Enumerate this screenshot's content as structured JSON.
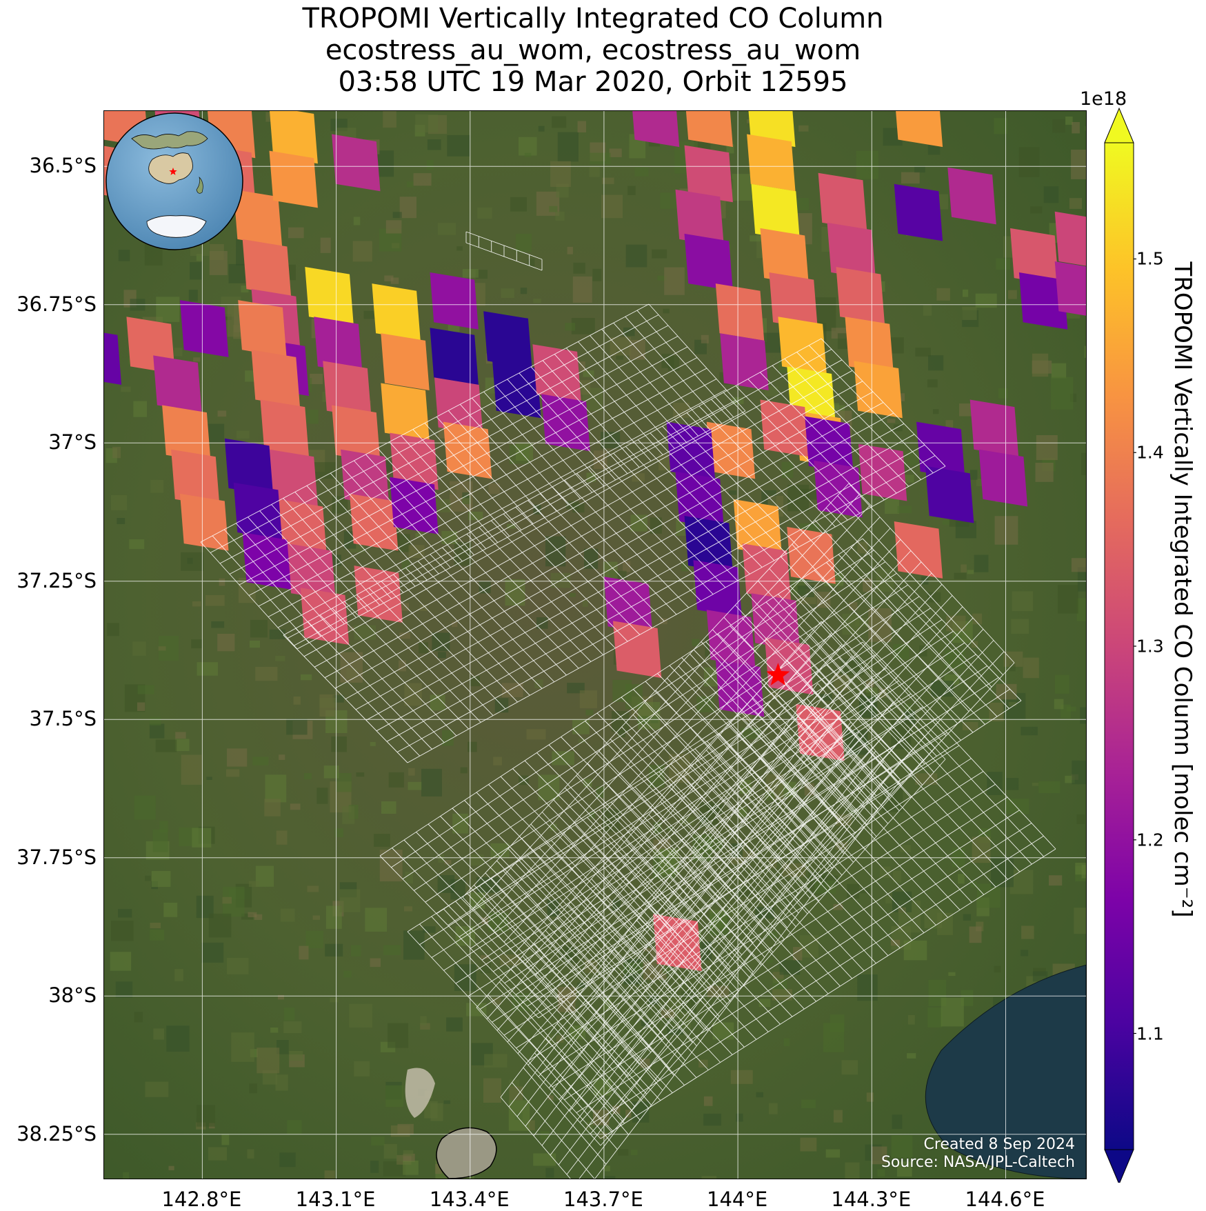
{
  "title": {
    "line1": "TROPOMI Vertically Integrated CO Column",
    "line2": "ecostress_au_wom, ecostress_au_wom",
    "line3": "03:58 UTC 19 Mar 2020, Orbit 12595"
  },
  "map": {
    "extent": {
      "lon_min": 142.58,
      "lon_max": 144.78,
      "lat_min": -38.33,
      "lat_max": -36.4
    },
    "lat_ticks": [
      {
        "value": -36.5,
        "label": "36.5°S"
      },
      {
        "value": -36.75,
        "label": "36.75°S"
      },
      {
        "value": -37.0,
        "label": "37°S"
      },
      {
        "value": -37.25,
        "label": "37.25°S"
      },
      {
        "value": -37.5,
        "label": "37.5°S"
      },
      {
        "value": -37.75,
        "label": "37.75°S"
      },
      {
        "value": -38.0,
        "label": "38°S"
      },
      {
        "value": -38.25,
        "label": "38.25°S"
      }
    ],
    "lon_ticks": [
      {
        "value": 142.8,
        "label": "142.8°E"
      },
      {
        "value": 143.1,
        "label": "143.1°E"
      },
      {
        "value": 143.4,
        "label": "143.4°E"
      },
      {
        "value": 143.7,
        "label": "143.7°E"
      },
      {
        "value": 144.0,
        "label": "144°E"
      },
      {
        "value": 144.3,
        "label": "144.3°E"
      },
      {
        "value": 144.6,
        "label": "144.6°E"
      }
    ],
    "target_marker": {
      "lon": 144.09,
      "lat": -37.42,
      "color": "#ff0000"
    },
    "credit_line1": "Created 8 Sep 2024",
    "credit_line2": "Source: NASA/JPL-Caltech",
    "grid_color": "#ffffff",
    "footprint_color": "#ffffff"
  },
  "tropomi_pixels": [
    {
      "lon": 142.62,
      "lat": -36.42,
      "v": 1.38
    },
    {
      "lon": 142.62,
      "lat": -36.52,
      "v": 1.37
    },
    {
      "lon": 142.74,
      "lat": -36.42,
      "v": 1.31
    },
    {
      "lon": 142.74,
      "lat": -36.51,
      "v": 1.18
    },
    {
      "lon": 142.86,
      "lat": -36.44,
      "v": 1.4
    },
    {
      "lon": 142.86,
      "lat": -36.52,
      "v": 1.36
    },
    {
      "lon": 142.92,
      "lat": -36.6,
      "v": 1.41
    },
    {
      "lon": 142.94,
      "lat": -36.69,
      "v": 1.37
    },
    {
      "lon": 142.96,
      "lat": -36.78,
      "v": 1.3
    },
    {
      "lon": 142.98,
      "lat": -36.87,
      "v": 1.19
    },
    {
      "lon": 143.0,
      "lat": -36.45,
      "v": 1.47
    },
    {
      "lon": 143.0,
      "lat": -36.53,
      "v": 1.43
    },
    {
      "lon": 143.14,
      "lat": -36.5,
      "v": 1.26
    },
    {
      "lon": 143.08,
      "lat": -36.74,
      "v": 1.52
    },
    {
      "lon": 142.56,
      "lat": -36.85,
      "v": 1.14
    },
    {
      "lon": 142.68,
      "lat": -36.83,
      "v": 1.36
    },
    {
      "lon": 142.8,
      "lat": -36.8,
      "v": 1.18
    },
    {
      "lon": 142.93,
      "lat": -36.8,
      "v": 1.39
    },
    {
      "lon": 142.96,
      "lat": -36.89,
      "v": 1.38
    },
    {
      "lon": 142.98,
      "lat": -36.98,
      "v": 1.36
    },
    {
      "lon": 143.0,
      "lat": -37.07,
      "v": 1.31
    },
    {
      "lon": 143.02,
      "lat": -37.16,
      "v": 1.35
    },
    {
      "lon": 143.04,
      "lat": -37.24,
      "v": 1.3
    },
    {
      "lon": 142.74,
      "lat": -36.9,
      "v": 1.25
    },
    {
      "lon": 142.76,
      "lat": -36.99,
      "v": 1.4
    },
    {
      "lon": 142.78,
      "lat": -37.07,
      "v": 1.37
    },
    {
      "lon": 142.8,
      "lat": -37.15,
      "v": 1.39
    },
    {
      "lon": 142.9,
      "lat": -37.05,
      "v": 1.09
    },
    {
      "lon": 142.92,
      "lat": -37.13,
      "v": 1.11
    },
    {
      "lon": 142.94,
      "lat": -37.22,
      "v": 1.17
    },
    {
      "lon": 143.1,
      "lat": -36.83,
      "v": 1.23
    },
    {
      "lon": 143.12,
      "lat": -36.91,
      "v": 1.33
    },
    {
      "lon": 143.14,
      "lat": -36.99,
      "v": 1.37
    },
    {
      "lon": 143.16,
      "lat": -37.07,
      "v": 1.28
    },
    {
      "lon": 143.18,
      "lat": -37.15,
      "v": 1.36
    },
    {
      "lon": 143.23,
      "lat": -36.77,
      "v": 1.51
    },
    {
      "lon": 143.25,
      "lat": -36.86,
      "v": 1.42
    },
    {
      "lon": 143.25,
      "lat": -36.95,
      "v": 1.46
    },
    {
      "lon": 143.27,
      "lat": -37.04,
      "v": 1.32
    },
    {
      "lon": 143.27,
      "lat": -37.12,
      "v": 1.17
    },
    {
      "lon": 143.36,
      "lat": -36.75,
      "v": 1.2
    },
    {
      "lon": 143.36,
      "lat": -36.85,
      "v": 1.07
    },
    {
      "lon": 143.37,
      "lat": -36.94,
      "v": 1.3
    },
    {
      "lon": 143.39,
      "lat": -37.02,
      "v": 1.41
    },
    {
      "lon": 143.48,
      "lat": -36.82,
      "v": 1.07
    },
    {
      "lon": 143.5,
      "lat": -36.91,
      "v": 1.07
    },
    {
      "lon": 143.59,
      "lat": -36.88,
      "v": 1.31
    },
    {
      "lon": 143.61,
      "lat": -36.97,
      "v": 1.2
    },
    {
      "lon": 143.81,
      "lat": -36.42,
      "v": 1.25
    },
    {
      "lon": 143.93,
      "lat": -36.42,
      "v": 1.41
    },
    {
      "lon": 143.93,
      "lat": -36.52,
      "v": 1.31
    },
    {
      "lon": 144.07,
      "lat": -36.42,
      "v": 1.53
    },
    {
      "lon": 144.07,
      "lat": -36.5,
      "v": 1.47
    },
    {
      "lon": 144.08,
      "lat": -36.59,
      "v": 1.54
    },
    {
      "lon": 144.1,
      "lat": -36.67,
      "v": 1.42
    },
    {
      "lon": 144.12,
      "lat": -36.75,
      "v": 1.35
    },
    {
      "lon": 144.14,
      "lat": -36.83,
      "v": 1.48
    },
    {
      "lon": 144.16,
      "lat": -36.92,
      "v": 1.54
    },
    {
      "lon": 144.18,
      "lat": -37.0,
      "v": 1.46
    },
    {
      "lon": 143.91,
      "lat": -36.6,
      "v": 1.28
    },
    {
      "lon": 143.93,
      "lat": -36.68,
      "v": 1.19
    },
    {
      "lon": 144.23,
      "lat": -36.57,
      "v": 1.33
    },
    {
      "lon": 144.25,
      "lat": -36.66,
      "v": 1.3
    },
    {
      "lon": 144.27,
      "lat": -36.74,
      "v": 1.35
    },
    {
      "lon": 144.29,
      "lat": -36.83,
      "v": 1.42
    },
    {
      "lon": 144.31,
      "lat": -36.91,
      "v": 1.45
    },
    {
      "lon": 144.4,
      "lat": -36.59,
      "v": 1.12
    },
    {
      "lon": 144.52,
      "lat": -36.56,
      "v": 1.25
    },
    {
      "lon": 144.66,
      "lat": -36.67,
      "v": 1.33
    },
    {
      "lon": 144.68,
      "lat": -36.75,
      "v": 1.16
    },
    {
      "lon": 144.76,
      "lat": -36.64,
      "v": 1.3
    },
    {
      "lon": 144.76,
      "lat": -36.73,
      "v": 1.24
    },
    {
      "lon": 144.4,
      "lat": -36.42,
      "v": 1.44
    },
    {
      "lon": 144.0,
      "lat": -36.77,
      "v": 1.37
    },
    {
      "lon": 144.01,
      "lat": -36.86,
      "v": 1.24
    },
    {
      "lon": 143.98,
      "lat": -37.02,
      "v": 1.41
    },
    {
      "lon": 144.1,
      "lat": -36.98,
      "v": 1.35
    },
    {
      "lon": 144.2,
      "lat": -37.01,
      "v": 1.16
    },
    {
      "lon": 144.22,
      "lat": -37.09,
      "v": 1.2
    },
    {
      "lon": 144.32,
      "lat": -37.06,
      "v": 1.27
    },
    {
      "lon": 144.45,
      "lat": -37.02,
      "v": 1.14
    },
    {
      "lon": 144.47,
      "lat": -37.1,
      "v": 1.11
    },
    {
      "lon": 144.57,
      "lat": -36.98,
      "v": 1.25
    },
    {
      "lon": 144.59,
      "lat": -37.07,
      "v": 1.22
    },
    {
      "lon": 143.89,
      "lat": -37.02,
      "v": 1.13
    },
    {
      "lon": 143.91,
      "lat": -37.11,
      "v": 1.15
    },
    {
      "lon": 143.93,
      "lat": -37.19,
      "v": 1.07
    },
    {
      "lon": 143.95,
      "lat": -37.27,
      "v": 1.15
    },
    {
      "lon": 144.04,
      "lat": -37.16,
      "v": 1.45
    },
    {
      "lon": 144.06,
      "lat": -37.24,
      "v": 1.33
    },
    {
      "lon": 144.16,
      "lat": -37.21,
      "v": 1.38
    },
    {
      "lon": 144.08,
      "lat": -37.33,
      "v": 1.26
    },
    {
      "lon": 143.98,
      "lat": -37.36,
      "v": 1.23
    },
    {
      "lon": 144.0,
      "lat": -37.45,
      "v": 1.21
    },
    {
      "lon": 144.11,
      "lat": -37.41,
      "v": 1.31
    },
    {
      "lon": 144.18,
      "lat": -37.53,
      "v": 1.34
    },
    {
      "lon": 144.4,
      "lat": -37.2,
      "v": 1.36
    },
    {
      "lon": 143.75,
      "lat": -37.3,
      "v": 1.22
    },
    {
      "lon": 143.77,
      "lat": -37.38,
      "v": 1.34
    },
    {
      "lon": 143.86,
      "lat": -37.91,
      "v": 1.34
    },
    {
      "lon": 143.19,
      "lat": -37.28,
      "v": 1.34
    },
    {
      "lon": 143.07,
      "lat": -37.32,
      "v": 1.33
    }
  ],
  "colorbar": {
    "vmin": 1.04,
    "vmax": 1.56,
    "exponent": "1e18",
    "label": "TROPOMI Vertically Integrated CO Column [molec cm⁻²]",
    "ticks": [
      {
        "value": 1.1,
        "label": "1.1"
      },
      {
        "value": 1.2,
        "label": "1.2"
      },
      {
        "value": 1.3,
        "label": "1.3"
      },
      {
        "value": 1.4,
        "label": "1.4"
      },
      {
        "value": 1.5,
        "label": "1.5"
      }
    ],
    "colormap": "plasma"
  },
  "inset_globe": {
    "marker_color": "#ff0000",
    "ocean_color": "#6fa3c9",
    "land_color": "#d9c9a3"
  }
}
